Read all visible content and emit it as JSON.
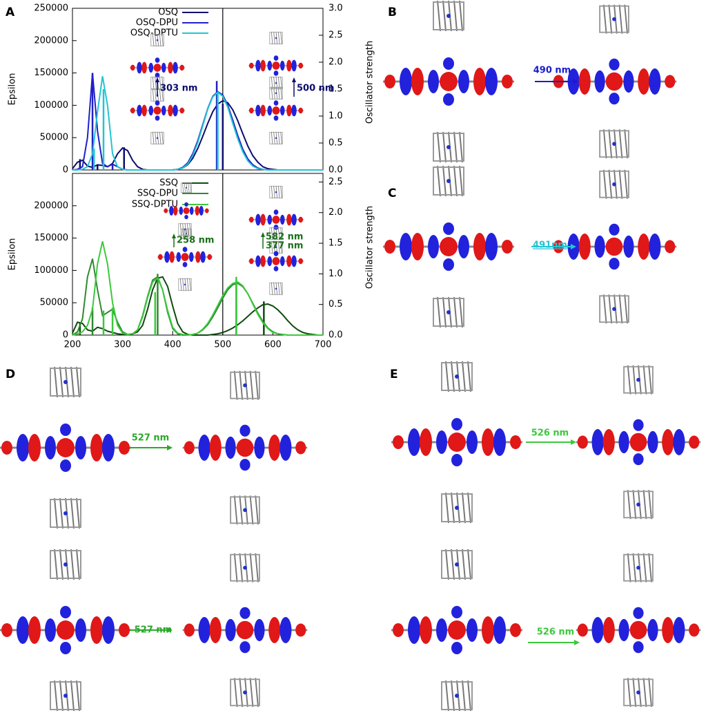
{
  "panel_labels": [
    "A",
    "B",
    "C",
    "D",
    "E"
  ],
  "chart_data": [
    {
      "type": "line",
      "ylabel": "Epsilon",
      "y2label": "Oscillator strength",
      "xlim": [
        200,
        700
      ],
      "ylim": [
        0,
        250000
      ],
      "yticks": [
        0,
        50000,
        100000,
        150000,
        200000,
        250000
      ],
      "y2lim": [
        0,
        3.0
      ],
      "y2ticks": [
        {
          "value": 0,
          "label": "0.0"
        },
        {
          "value": 0.5,
          "label": "0.5"
        },
        {
          "value": 1,
          "label": "1.0"
        },
        {
          "value": 1.5,
          "label": "1.5"
        },
        {
          "value": 2,
          "label": "2.0"
        },
        {
          "value": 2.5,
          "label": "2.5"
        },
        {
          "value": 3,
          "label": "3.0"
        }
      ],
      "vline": 500,
      "x": [
        200,
        210,
        220,
        230,
        240,
        250,
        260,
        270,
        280,
        290,
        300,
        310,
        320,
        330,
        340,
        350,
        360,
        370,
        380,
        390,
        400,
        410,
        420,
        430,
        440,
        450,
        460,
        470,
        480,
        490,
        500,
        510,
        520,
        530,
        540,
        550,
        560,
        570,
        580,
        590,
        600,
        610,
        620,
        630,
        640,
        650,
        660,
        670,
        680,
        690,
        700
      ],
      "series": [
        {
          "name": "OSQ",
          "color": "#0c0c6e",
          "values": [
            2000,
            12000,
            15000,
            6000,
            4000,
            8000,
            7000,
            5000,
            10000,
            25000,
            34000,
            30000,
            15000,
            5000,
            1000,
            0,
            0,
            0,
            0,
            0,
            0,
            1000,
            3000,
            8000,
            18000,
            33000,
            52000,
            72000,
            90000,
            102000,
            107000,
            104000,
            93000,
            76000,
            56000,
            37000,
            22000,
            12000,
            5000,
            2000,
            1000,
            0,
            0,
            0,
            0,
            0,
            0,
            0,
            0,
            0,
            0
          ],
          "stick_x": [
            215,
            250,
            303,
            500
          ],
          "stick_f": [
            0.2,
            0.1,
            0.42,
            1.23
          ],
          "axis_sticks": "y2"
        },
        {
          "name": "OSQ-DPU",
          "color": "#2020c8",
          "values": [
            0,
            1000,
            5000,
            50000,
            150000,
            60000,
            10000,
            5000,
            9000,
            5000,
            1000,
            0,
            0,
            0,
            0,
            0,
            0,
            0,
            0,
            0,
            0,
            1000,
            4000,
            11000,
            25000,
            45000,
            70000,
            95000,
            114000,
            121000,
            116000,
            100000,
            77000,
            53000,
            32000,
            17000,
            8000,
            3000,
            1000,
            0,
            0,
            0,
            0,
            0,
            0,
            0,
            0,
            0,
            0,
            0,
            0
          ],
          "stick_x": [
            240,
            280,
            488
          ],
          "stick_f": [
            1.8,
            0.1,
            1.65
          ],
          "axis_sticks": "y2"
        },
        {
          "name": "OSQ-DPTU",
          "color": "#22c4d4",
          "values": [
            0,
            0,
            1000,
            5000,
            25000,
            90000,
            145000,
            100000,
            25000,
            5000,
            1000,
            0,
            0,
            0,
            0,
            0,
            0,
            0,
            0,
            0,
            0,
            1000,
            3000,
            9000,
            22000,
            42000,
            68000,
            94000,
            113000,
            120000,
            114000,
            97000,
            72000,
            48000,
            28000,
            14000,
            6000,
            2000,
            1000,
            0,
            0,
            0,
            0,
            0,
            0,
            0,
            0,
            0,
            0,
            0,
            0
          ],
          "stick_x": [
            243,
            262,
            490
          ],
          "stick_f": [
            0.4,
            1.5,
            1.45
          ],
          "axis_sticks": "y2"
        }
      ],
      "annotations": [
        {
          "text": "303 nm",
          "color": "#0c0c6e"
        },
        {
          "text": "500 nm",
          "color": "#0c0c6e"
        }
      ]
    },
    {
      "type": "line",
      "ylabel": "Epsilon",
      "y2label": "Oscillator strength",
      "xlim": [
        200,
        700
      ],
      "ylim": [
        0,
        250000
      ],
      "yticks": [
        0,
        50000,
        100000,
        150000,
        200000
      ],
      "xticks": [
        200,
        300,
        400,
        500,
        600,
        700
      ],
      "y2lim": [
        0,
        2.64
      ],
      "y2ticks": [
        {
          "value": 0,
          "label": "0.0"
        },
        {
          "value": 0.5,
          "label": "0.5"
        },
        {
          "value": 1,
          "label": "1.0"
        },
        {
          "value": 1.5,
          "label": "1.5"
        },
        {
          "value": 2,
          "label": "2.0"
        },
        {
          "value": 2.5,
          "label": "2.5"
        }
      ],
      "vline": 500,
      "x": [
        200,
        210,
        220,
        230,
        240,
        250,
        260,
        270,
        280,
        290,
        300,
        310,
        320,
        330,
        340,
        350,
        360,
        370,
        380,
        390,
        400,
        410,
        420,
        430,
        440,
        450,
        460,
        470,
        480,
        490,
        500,
        510,
        520,
        530,
        540,
        550,
        560,
        570,
        580,
        590,
        600,
        610,
        620,
        630,
        640,
        650,
        660,
        670,
        680,
        690,
        700
      ],
      "series": [
        {
          "name": "SSQ",
          "color": "#0e4a0e",
          "values": [
            3000,
            20000,
            18000,
            8000,
            6000,
            12000,
            10000,
            6000,
            4000,
            2000,
            1000,
            1000,
            2000,
            5000,
            15000,
            40000,
            70000,
            88000,
            90000,
            75000,
            45000,
            18000,
            5000,
            1000,
            0,
            0,
            0,
            0,
            1000,
            2000,
            4000,
            7000,
            11000,
            16000,
            22000,
            29000,
            36000,
            42000,
            47000,
            48000,
            45000,
            39000,
            31000,
            22000,
            14000,
            8000,
            4000,
            2000,
            1000,
            0,
            0
          ],
          "stick_x": [
            215,
            582
          ],
          "stick_f": [
            0.2,
            0.55
          ],
          "axis_sticks": "y2"
        },
        {
          "name": "SSQ-DPU",
          "color": "#2e8a2e",
          "values": [
            0,
            5000,
            25000,
            90000,
            118000,
            70000,
            30000,
            35000,
            40000,
            20000,
            5000,
            1000,
            2000,
            8000,
            30000,
            60000,
            85000,
            90000,
            70000,
            35000,
            10000,
            2000,
            0,
            0,
            1000,
            3000,
            8000,
            16000,
            28000,
            42000,
            57000,
            70000,
            78000,
            80000,
            75000,
            64000,
            49000,
            34000,
            21000,
            11000,
            5000,
            2000,
            1000,
            0,
            0,
            0,
            0,
            0,
            0,
            0,
            0
          ],
          "stick_x": [
            240,
            370,
            527
          ],
          "stick_f": [
            0.45,
            1.0,
            0.9
          ],
          "axis_sticks": "y2"
        },
        {
          "name": "SSQ-DPTU",
          "color": "#3cc83c",
          "values": [
            0,
            2000,
            5000,
            15000,
            40000,
            110000,
            145000,
            110000,
            50000,
            15000,
            3000,
            1000,
            2000,
            8000,
            28000,
            58000,
            82000,
            88000,
            70000,
            38000,
            12000,
            3000,
            1000,
            0,
            1000,
            3000,
            9000,
            18000,
            31000,
            46000,
            61000,
            73000,
            80000,
            82000,
            76000,
            64000,
            48000,
            32000,
            19000,
            10000,
            4000,
            2000,
            1000,
            0,
            0,
            0,
            0,
            0,
            0,
            0,
            0
          ],
          "stick_x": [
            262,
            280,
            365,
            527
          ],
          "stick_f": [
            0.4,
            0.45,
            0.7,
            0.95
          ],
          "axis_sticks": "y2"
        }
      ],
      "annotations": [
        {
          "text": "258 nm",
          "color": "#1a6e1a"
        },
        {
          "text": "582 nm",
          "color": "#1a6e1a"
        },
        {
          "text": "377 nm",
          "color": "#1a6e1a"
        }
      ]
    }
  ],
  "transitions": [
    {
      "text": "490 nm",
      "color": "#1a1ad0"
    },
    {
      "text": "491nm",
      "color": "#22c4d4"
    },
    {
      "text": "527 nm",
      "color": "#2aa82a"
    },
    {
      "text": "527 nm",
      "color": "#2aa82a"
    },
    {
      "text": "526 nm",
      "color": "#3cc83c"
    },
    {
      "text": "526 nm",
      "color": "#3cc83c"
    }
  ]
}
